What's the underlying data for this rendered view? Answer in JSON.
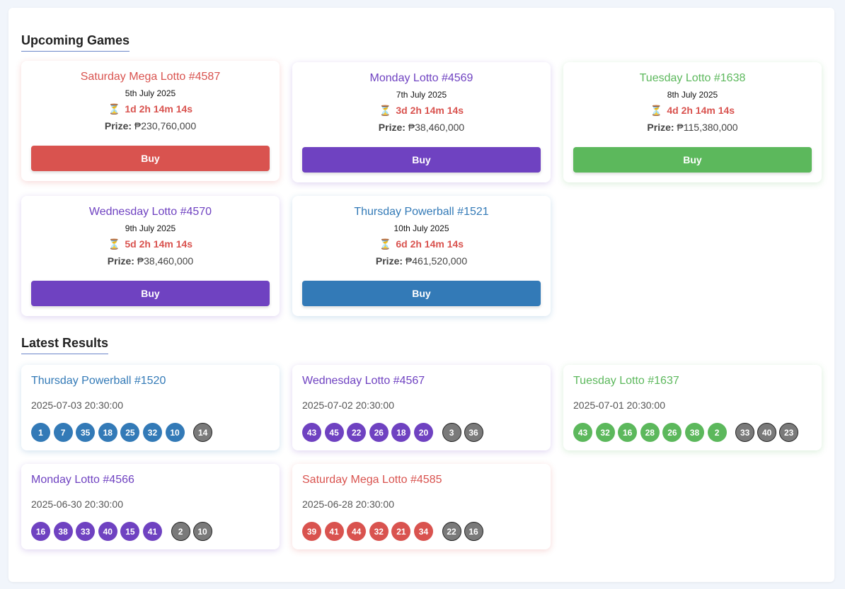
{
  "sections": {
    "upcoming_title": "Upcoming Games",
    "results_title": "Latest Results"
  },
  "upcoming": [
    {
      "name": "Saturday Mega Lotto #4587",
      "date": "5th July 2025",
      "countdown": "1d 2h 14m 14s",
      "prize_label": "Prize:",
      "prize": "₱230,760,000",
      "buy_label": "Buy",
      "color": "#d9534f"
    },
    {
      "name": "Monday Lotto #4569",
      "date": "7th July 2025",
      "countdown": "3d 2h 14m 14s",
      "prize_label": "Prize:",
      "prize": "₱38,460,000",
      "buy_label": "Buy",
      "color": "#6f42c1"
    },
    {
      "name": "Tuesday Lotto #1638",
      "date": "8th July 2025",
      "countdown": "4d 2h 14m 14s",
      "prize_label": "Prize:",
      "prize": "₱115,380,000",
      "buy_label": "Buy",
      "color": "#5cb85c"
    },
    {
      "name": "Wednesday Lotto #4570",
      "date": "9th July 2025",
      "countdown": "5d 2h 14m 14s",
      "prize_label": "Prize:",
      "prize": "₱38,460,000",
      "buy_label": "Buy",
      "color": "#6f42c1"
    },
    {
      "name": "Thursday Powerball #1521",
      "date": "10th July 2025",
      "countdown": "6d 2h 14m 14s",
      "prize_label": "Prize:",
      "prize": "₱461,520,000",
      "buy_label": "Buy",
      "color": "#337ab7"
    }
  ],
  "results": [
    {
      "name": "Thursday Powerball #1520",
      "time": "2025-07-03 20:30:00",
      "balls": [
        "1",
        "7",
        "35",
        "18",
        "25",
        "32",
        "10"
      ],
      "extra": [
        "14"
      ],
      "color": "#337ab7"
    },
    {
      "name": "Wednesday Lotto #4567",
      "time": "2025-07-02 20:30:00",
      "balls": [
        "43",
        "45",
        "22",
        "26",
        "18",
        "20"
      ],
      "extra": [
        "3",
        "36"
      ],
      "color": "#6f42c1"
    },
    {
      "name": "Tuesday Lotto #1637",
      "time": "2025-07-01 20:30:00",
      "balls": [
        "43",
        "32",
        "16",
        "28",
        "26",
        "38",
        "2"
      ],
      "extra": [
        "33",
        "40",
        "23"
      ],
      "color": "#5cb85c"
    },
    {
      "name": "Monday Lotto #4566",
      "time": "2025-06-30 20:30:00",
      "balls": [
        "16",
        "38",
        "33",
        "40",
        "15",
        "41"
      ],
      "extra": [
        "2",
        "10"
      ],
      "color": "#6f42c1"
    },
    {
      "name": "Saturday Mega Lotto #4585",
      "time": "2025-06-28 20:30:00",
      "balls": [
        "39",
        "41",
        "44",
        "32",
        "21",
        "34"
      ],
      "extra": [
        "22",
        "16"
      ],
      "color": "#d9534f"
    }
  ],
  "icons": {
    "countdown": "hourglass-icon"
  }
}
